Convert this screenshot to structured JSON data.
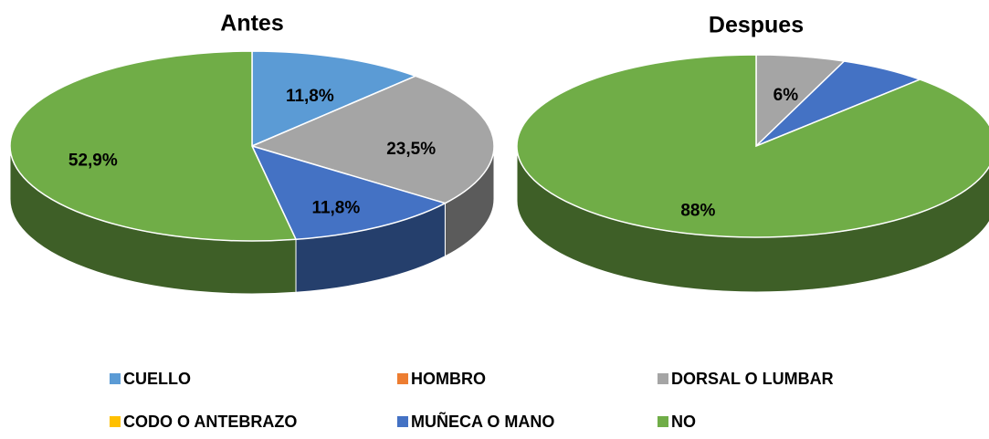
{
  "chart_data": [
    {
      "type": "pie",
      "title": "Antes",
      "categories": [
        "CUELLO",
        "HOMBRO",
        "DORSAL O LUMBAR",
        "CODO O ANTEBRAZO",
        "MUÑECA O MANO",
        "NO"
      ],
      "values": [
        11.8,
        0,
        23.5,
        0,
        11.8,
        52.9
      ],
      "value_labels": [
        "11,8%",
        null,
        "23,5%",
        null,
        "11,8%",
        "52,9%"
      ],
      "colors": [
        "#5b9bd5",
        "#ed7d31",
        "#a5a5a5",
        "#ffc000",
        "#4472c4",
        "#70ad47"
      ]
    },
    {
      "type": "pie",
      "title": "Despues",
      "categories": [
        "CUELLO",
        "HOMBRO",
        "DORSAL O LUMBAR",
        "CODO O ANTEBRAZO",
        "MUÑECA O MANO",
        "NO"
      ],
      "values": [
        0,
        0,
        6,
        0,
        6,
        88
      ],
      "value_labels": [
        null,
        null,
        "6%",
        null,
        null,
        "88%"
      ],
      "colors": [
        "#5b9bd5",
        "#ed7d31",
        "#a5a5a5",
        "#ffc000",
        "#4472c4",
        "#70ad47"
      ]
    }
  ]
}
